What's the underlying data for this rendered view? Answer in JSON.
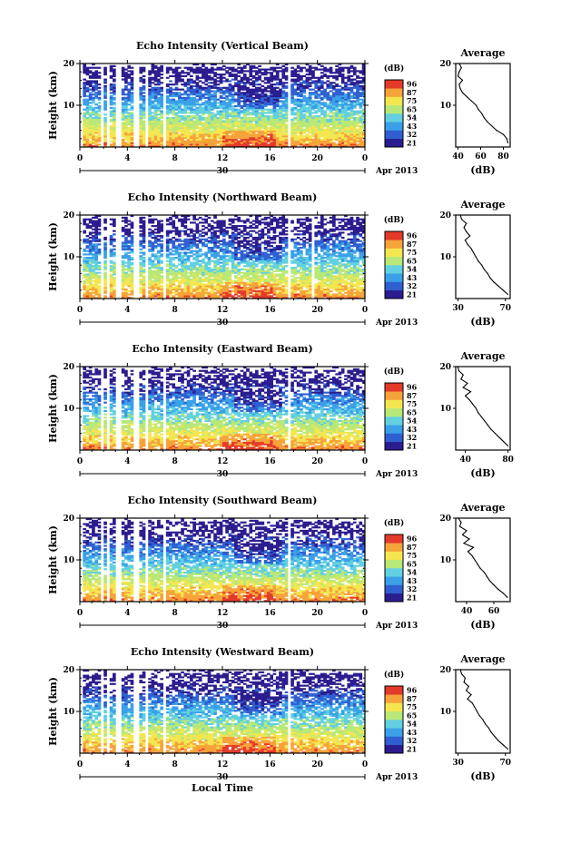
{
  "colorbar_unit": "(dB)",
  "colorbar_ticks": [
    "96",
    "87",
    "75",
    "65",
    "54",
    "43",
    "32",
    "21"
  ],
  "ylabel": "Height (km)",
  "xlabel_bottom": "Local Time",
  "date_label": "Apr 2013",
  "date_tick": "30",
  "x_tick_labels": [
    "0",
    "4",
    "8",
    "12",
    "16",
    "20",
    "0"
  ],
  "average_title": "Average",
  "average_xlabel": "(dB)",
  "colormap": [
    "#2b1d8f",
    "#2f5fd0",
    "#3aa0e8",
    "#62d0e0",
    "#b8e878",
    "#f4e650",
    "#f6a33a",
    "#e43a2a"
  ],
  "chart_data": [
    {
      "type": "heatmap",
      "title": "Echo Intensity (Vertical Beam)",
      "ylabel": "Height (km)",
      "xlim": [
        0,
        24
      ],
      "ylim": [
        0,
        20
      ],
      "y_ticks": [
        "20",
        "10"
      ],
      "x_ticks": [
        "0",
        "4",
        "8",
        "12",
        "16",
        "20",
        "0"
      ],
      "colorbar": {
        "label": "(dB)",
        "ticks": [
          "96",
          "87",
          "75",
          "65",
          "54",
          "43",
          "32",
          "21"
        ]
      },
      "gap_hours": [
        0.0,
        1.9,
        2.4,
        3.2,
        4.7,
        5.6,
        7.1,
        17.6
      ],
      "intensity_peak_heights_km": [
        2,
        4
      ],
      "average_profile": {
        "title": "Average",
        "xlabel": "(dB)",
        "xticks": [
          "40",
          "60",
          "80"
        ],
        "y_ticks": [
          "20",
          "10"
        ],
        "height_km": [
          1,
          2,
          3,
          4,
          5,
          6,
          7,
          8,
          9,
          10,
          11,
          12,
          13,
          14,
          15,
          16,
          17,
          18,
          19,
          20
        ],
        "db": [
          84,
          83,
          80,
          74,
          70,
          66,
          63,
          61,
          58,
          56,
          52,
          48,
          44,
          42,
          41,
          44,
          40,
          41,
          43,
          41
        ]
      }
    },
    {
      "type": "heatmap",
      "title": "Echo Intensity (Northward Beam)",
      "ylabel": "Height (km)",
      "xlim": [
        0,
        24
      ],
      "ylim": [
        0,
        20
      ],
      "y_ticks": [
        "20",
        "10"
      ],
      "x_ticks": [
        "0",
        "4",
        "8",
        "12",
        "16",
        "20",
        "0"
      ],
      "colorbar": {
        "label": "(dB)",
        "ticks": [
          "96",
          "87",
          "75",
          "65",
          "54",
          "43",
          "32",
          "21"
        ]
      },
      "gap_hours": [
        0.0,
        1.9,
        2.4,
        3.2,
        4.7,
        5.6,
        7.1,
        17.6,
        19.6
      ],
      "intensity_peak_heights_km": [
        2,
        4
      ],
      "average_profile": {
        "title": "Average",
        "xlabel": "(dB)",
        "xticks": [
          "30",
          "70"
        ],
        "y_ticks": [
          "20",
          "10"
        ],
        "height_km": [
          1,
          2,
          3,
          4,
          5,
          6,
          7,
          8,
          9,
          10,
          11,
          12,
          13,
          14,
          15,
          16,
          17,
          18,
          19,
          20
        ],
        "db": [
          72,
          68,
          64,
          60,
          57,
          55,
          52,
          50,
          47,
          45,
          43,
          41,
          38,
          36,
          40,
          37,
          35,
          37,
          33,
          32
        ]
      }
    },
    {
      "type": "heatmap",
      "title": "Echo Intensity (Eastward Beam)",
      "ylabel": "Height (km)",
      "xlim": [
        0,
        24
      ],
      "ylim": [
        0,
        20
      ],
      "y_ticks": [
        "20",
        "10"
      ],
      "x_ticks": [
        "0",
        "4",
        "8",
        "12",
        "16",
        "20",
        "0"
      ],
      "colorbar": {
        "label": "(dB)",
        "ticks": [
          "96",
          "87",
          "75",
          "65",
          "54",
          "43",
          "32",
          "21"
        ]
      },
      "gap_hours": [
        0.0,
        1.9,
        2.4,
        3.2,
        4.7,
        5.6,
        7.1,
        17.6
      ],
      "intensity_peak_heights_km": [
        2,
        4
      ],
      "average_profile": {
        "title": "Average",
        "xlabel": "(dB)",
        "xticks": [
          "40",
          "80"
        ],
        "y_ticks": [
          "20",
          "10"
        ],
        "height_km": [
          1,
          2,
          3,
          4,
          5,
          6,
          7,
          8,
          9,
          10,
          11,
          12,
          13,
          14,
          15,
          16,
          17,
          18,
          19,
          20
        ],
        "db": [
          80,
          76,
          72,
          68,
          64,
          61,
          58,
          55,
          52,
          50,
          47,
          44,
          40,
          45,
          38,
          42,
          36,
          38,
          34,
          33
        ]
      }
    },
    {
      "type": "heatmap",
      "title": "Echo Intensity (Southward Beam)",
      "ylabel": "Height (km)",
      "xlim": [
        0,
        24
      ],
      "ylim": [
        0,
        20
      ],
      "y_ticks": [
        "20",
        "10"
      ],
      "x_ticks": [
        "0",
        "4",
        "8",
        "12",
        "16",
        "20",
        "0"
      ],
      "colorbar": {
        "label": "(dB)",
        "ticks": [
          "96",
          "87",
          "75",
          "65",
          "54",
          "43",
          "32",
          "21"
        ]
      },
      "gap_hours": [
        0.0,
        1.9,
        2.4,
        3.2,
        4.7,
        5.6,
        7.1,
        17.6
      ],
      "intensity_peak_heights_km": [
        2,
        4
      ],
      "average_profile": {
        "title": "Average",
        "xlabel": "(dB)",
        "xticks": [
          "40",
          "60"
        ],
        "y_ticks": [
          "20",
          "10"
        ],
        "height_km": [
          1,
          2,
          3,
          4,
          5,
          6,
          7,
          8,
          9,
          10,
          11,
          12,
          13,
          14,
          15,
          16,
          17,
          18,
          19,
          20
        ],
        "db": [
          70,
          67,
          63,
          60,
          57,
          55,
          53,
          50,
          48,
          46,
          44,
          41,
          45,
          38,
          42,
          37,
          40,
          35,
          36,
          34
        ]
      }
    },
    {
      "type": "heatmap",
      "title": "Echo Intensity (Westward Beam)",
      "ylabel": "Height (km)",
      "xlim": [
        0,
        24
      ],
      "ylim": [
        0,
        20
      ],
      "y_ticks": [
        "20",
        "10"
      ],
      "x_ticks": [
        "0",
        "4",
        "8",
        "12",
        "16",
        "20",
        "0"
      ],
      "colorbar": {
        "label": "(dB)",
        "ticks": [
          "96",
          "87",
          "75",
          "65",
          "54",
          "43",
          "32",
          "21"
        ]
      },
      "gap_hours": [
        0.0,
        1.9,
        2.4,
        3.2,
        4.7,
        5.6,
        7.1,
        17.6
      ],
      "intensity_peak_heights_km": [
        2,
        4
      ],
      "average_profile": {
        "title": "Average",
        "xlabel": "(dB)",
        "xticks": [
          "30",
          "70"
        ],
        "y_ticks": [
          "20",
          "10"
        ],
        "height_km": [
          1,
          2,
          3,
          4,
          5,
          6,
          7,
          8,
          9,
          10,
          11,
          12,
          13,
          14,
          15,
          16,
          17,
          18,
          19,
          20
        ],
        "db": [
          72,
          68,
          64,
          61,
          58,
          56,
          53,
          51,
          48,
          46,
          44,
          42,
          38,
          41,
          37,
          39,
          35,
          36,
          33,
          32
        ]
      }
    }
  ]
}
